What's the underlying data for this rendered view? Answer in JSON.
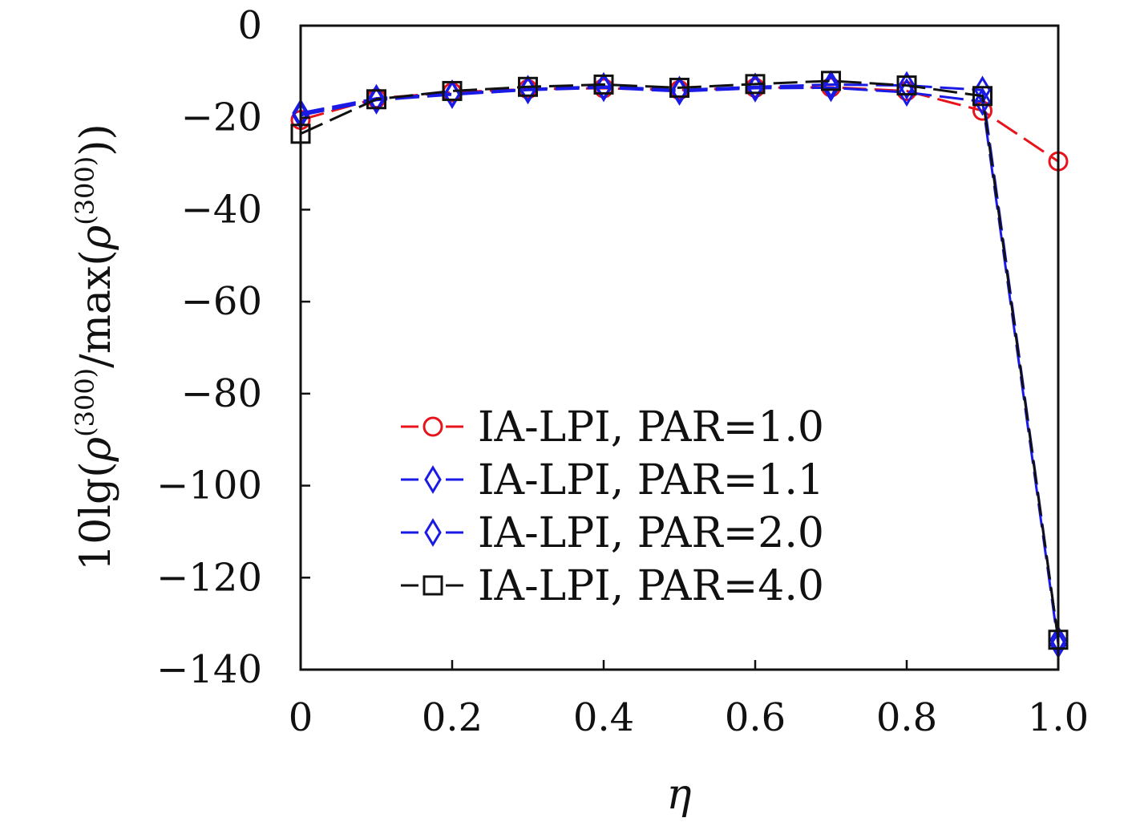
{
  "chart_data": {
    "type": "line",
    "title": "",
    "xlabel": "η",
    "ylabel": "10lg(ρ(300)/max(ρ(300)))",
    "ylabel_parts": {
      "prefix": "10lg(",
      "rho1": "ρ",
      "sup1": "(300)",
      "slash_max": "/max(",
      "rho2": "ρ",
      "sup2": "(300)",
      "suffix": "))"
    },
    "xlim": [
      0,
      1.0
    ],
    "ylim": [
      -140,
      0
    ],
    "x_ticks": [
      0,
      0.2,
      0.4,
      0.6,
      0.8,
      1.0
    ],
    "x_tick_labels": [
      "0",
      "0.2",
      "0.4",
      "0.6",
      "0.8",
      "1.0"
    ],
    "y_ticks": [
      0,
      -20,
      -40,
      -60,
      -80,
      -100,
      -120,
      -140
    ],
    "y_tick_labels": [
      "0",
      "−20",
      "−40",
      "−60",
      "−80",
      "−100",
      "−120",
      "−140"
    ],
    "grid": false,
    "legend_position": "bottom-center",
    "x": [
      0,
      0.1,
      0.2,
      0.3,
      0.4,
      0.5,
      0.6,
      0.7,
      0.8,
      0.9,
      1.0
    ],
    "series": [
      {
        "name": "IA-LPI, PAR=1.0",
        "color": "#e8141c",
        "marker": "circle",
        "values": [
          -20.5,
          -15.8,
          -14.5,
          -13.8,
          -13.6,
          -14.0,
          -13.5,
          -13.4,
          -14.2,
          -18.5,
          -29.5
        ]
      },
      {
        "name": "IA-LPI, PAR=1.1",
        "color": "#1a1ae6",
        "marker": "diamond",
        "values": [
          -19.0,
          -15.8,
          -14.8,
          -13.8,
          -13.2,
          -14.0,
          -13.3,
          -12.8,
          -13.0,
          -14.0,
          -133.5
        ]
      },
      {
        "name": "IA-LPI, PAR=2.0",
        "color": "#1a1ae6",
        "marker": "diamond",
        "values": [
          -19.5,
          -16.2,
          -15.0,
          -14.0,
          -13.5,
          -14.3,
          -13.6,
          -13.5,
          -14.5,
          -16.5,
          -134.5
        ]
      },
      {
        "name": "IA-LPI, PAR=4.0",
        "color": "#111111",
        "marker": "square",
        "values": [
          -23.5,
          -16.0,
          -14.2,
          -13.3,
          -12.8,
          -13.5,
          -12.7,
          -12.0,
          -13.0,
          -15.3,
          -133.5
        ]
      }
    ]
  }
}
